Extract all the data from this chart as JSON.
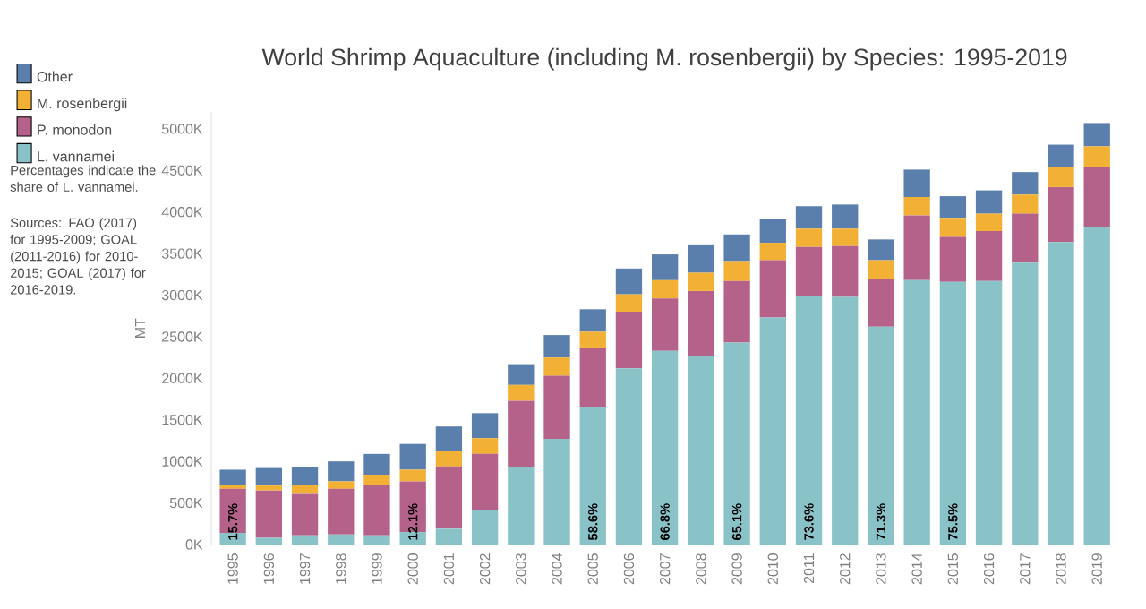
{
  "chart_data": {
    "type": "bar",
    "stacked": true,
    "title": "World Shrimp Aquaculture (including M. rosenbergii) by Species: 1995-2019",
    "ylabel": "MT",
    "categories": [
      "1995",
      "1996",
      "1997",
      "1998",
      "1999",
      "2000",
      "2001",
      "2002",
      "2003",
      "2004",
      "2005",
      "2006",
      "2007",
      "2008",
      "2009",
      "2010",
      "2011",
      "2012",
      "2013",
      "2014",
      "2015",
      "2016",
      "2017",
      "2018",
      "2019"
    ],
    "series": [
      {
        "name": "L. vannamei",
        "color": "#89c3c8",
        "values": [
          140,
          80,
          110,
          120,
          110,
          150,
          190,
          420,
          930,
          1270,
          1660,
          2120,
          2330,
          2270,
          2430,
          2730,
          2990,
          2980,
          2620,
          3180,
          3160,
          3170,
          3390,
          3640,
          3820
        ]
      },
      {
        "name": "P. monodon",
        "color": "#b5628a",
        "values": [
          530,
          570,
          500,
          550,
          600,
          610,
          750,
          670,
          800,
          760,
          700,
          680,
          630,
          780,
          740,
          690,
          590,
          610,
          580,
          780,
          540,
          600,
          590,
          660,
          720
        ]
      },
      {
        "name": "M. rosenbergii",
        "color": "#f2b134",
        "values": [
          50,
          60,
          110,
          90,
          130,
          140,
          180,
          190,
          190,
          220,
          200,
          210,
          220,
          220,
          240,
          210,
          220,
          210,
          220,
          220,
          230,
          210,
          230,
          240,
          250
        ]
      },
      {
        "name": "Other",
        "color": "#5b7fad",
        "values": [
          180,
          210,
          210,
          240,
          250,
          310,
          300,
          300,
          250,
          270,
          270,
          310,
          310,
          330,
          320,
          290,
          270,
          290,
          250,
          330,
          260,
          280,
          270,
          270,
          280
        ]
      }
    ],
    "ylim": [
      0,
      5200
    ],
    "yticks": [
      {
        "value": 0,
        "label": "0K"
      },
      {
        "value": 500,
        "label": "500K"
      },
      {
        "value": 1000,
        "label": "1000K"
      },
      {
        "value": 1500,
        "label": "1500K"
      },
      {
        "value": 2000,
        "label": "2000K"
      },
      {
        "value": 2500,
        "label": "2500K"
      },
      {
        "value": 3000,
        "label": "3000K"
      },
      {
        "value": 3500,
        "label": "3500K"
      },
      {
        "value": 4000,
        "label": "4000K"
      },
      {
        "value": 4500,
        "label": "4500K"
      },
      {
        "value": 5000,
        "label": "5000K"
      }
    ],
    "legend": "top left",
    "annotations": [
      "Percentages indicate the share of L. vannamei.",
      "Sources: FAO (2017) for 1995-2009; GOAL (2011-2016) for 2010-2015; GOAL (2017) for 2016-2019.",
      {
        "text": "15.7%",
        "x": "1995",
        "y": 0
      },
      {
        "text": "12.1%",
        "x": "2000",
        "y": 0
      },
      {
        "text": "58.6%",
        "x": "2005",
        "y": 0
      },
      {
        "text": "66.8%",
        "x": "2007",
        "y": 0
      },
      {
        "text": "65.1%",
        "x": "2009",
        "y": 0
      },
      {
        "text": "73.6%",
        "x": "2011",
        "y": 0
      },
      {
        "text": "71.3%",
        "x": "2013",
        "y": 0
      },
      {
        "text": "75.5%",
        "x": "2015",
        "y": 0
      }
    ]
  }
}
